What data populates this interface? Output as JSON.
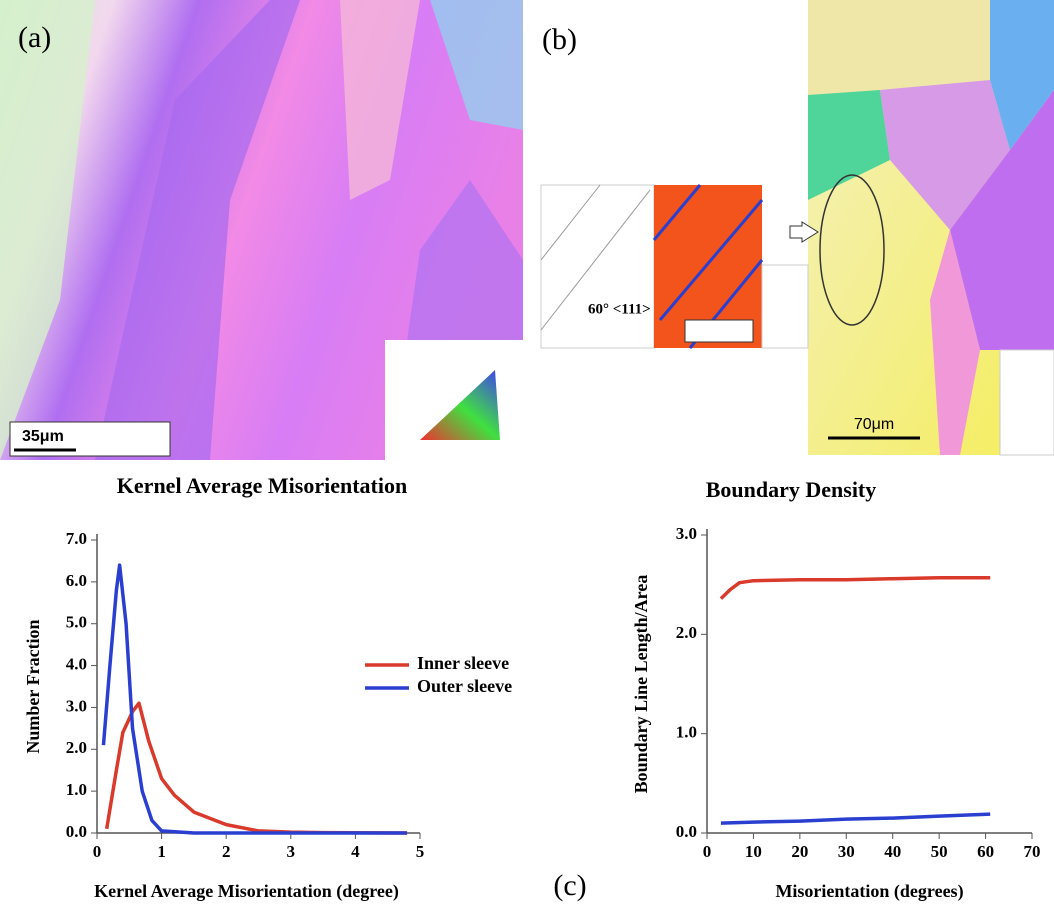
{
  "panels": {
    "a_label": "(a)",
    "b_label": "(b)",
    "c_label": "(c)",
    "a_scale": "35μm",
    "b_scale": "70μm",
    "b_inset": "60° <111>"
  },
  "chart_data": [
    {
      "type": "line",
      "title": "Kernel Average Misorientation",
      "x_label": "Kernel Average Misorientation  (degree)",
      "y_label": "Number Fraction",
      "xlim": [
        0,
        5
      ],
      "xticks": [
        0,
        1,
        2,
        3,
        4,
        5
      ],
      "ylim": [
        0,
        7
      ],
      "yticks": [
        {
          "value": 0,
          "label": "0.0"
        },
        {
          "value": 1,
          "label": "1.0"
        },
        {
          "value": 2,
          "label": "2.0"
        },
        {
          "value": 3,
          "label": "3.0"
        },
        {
          "value": 4,
          "label": "4.0"
        },
        {
          "value": 5,
          "label": "5.0"
        },
        {
          "value": 6,
          "label": "6.0"
        },
        {
          "value": 7,
          "label": "7.0"
        }
      ],
      "series": [
        {
          "name": "Inner sleeve",
          "color": "#d93a2b",
          "x": [
            0.15,
            0.3,
            0.4,
            0.55,
            0.65,
            0.8,
            1.0,
            1.2,
            1.5,
            2.0,
            2.5,
            3.0,
            3.5,
            4.8
          ],
          "values": [
            0.1,
            1.5,
            2.4,
            2.9,
            3.1,
            2.2,
            1.3,
            0.9,
            0.5,
            0.2,
            0.05,
            0.02,
            0.01,
            0
          ]
        },
        {
          "name": "Outer sleeve",
          "color": "#2a3fd0",
          "x": [
            0.1,
            0.2,
            0.3,
            0.35,
            0.45,
            0.55,
            0.7,
            0.85,
            1.0,
            1.5,
            3.0,
            4.8
          ],
          "values": [
            2.1,
            4.0,
            5.8,
            6.4,
            5.0,
            2.5,
            1.0,
            0.3,
            0.05,
            0,
            0,
            0
          ]
        }
      ]
    },
    {
      "type": "line",
      "title": "Boundary Density",
      "x_label": "Misorientation  (degrees)",
      "y_label": "Boundary Line Length/Area",
      "xlim": [
        0,
        70
      ],
      "xticks": [
        0,
        10,
        20,
        30,
        40,
        50,
        60,
        70
      ],
      "ylim": [
        0,
        3
      ],
      "yticks": [
        {
          "value": 0,
          "label": "0.0"
        },
        {
          "value": 1,
          "label": "1.0"
        },
        {
          "value": 2,
          "label": "2.0"
        },
        {
          "value": 3,
          "label": "3.0"
        }
      ],
      "series": [
        {
          "color": "#d93a2b",
          "x": [
            3,
            5,
            7,
            10,
            20,
            30,
            40,
            50,
            61
          ],
          "values": [
            2.36,
            2.45,
            2.52,
            2.54,
            2.55,
            2.55,
            2.56,
            2.57,
            2.57
          ]
        },
        {
          "color": "#2a3fd0",
          "x": [
            3,
            10,
            20,
            30,
            40,
            50,
            61
          ],
          "values": [
            0.1,
            0.11,
            0.12,
            0.14,
            0.15,
            0.17,
            0.19
          ]
        }
      ]
    }
  ]
}
